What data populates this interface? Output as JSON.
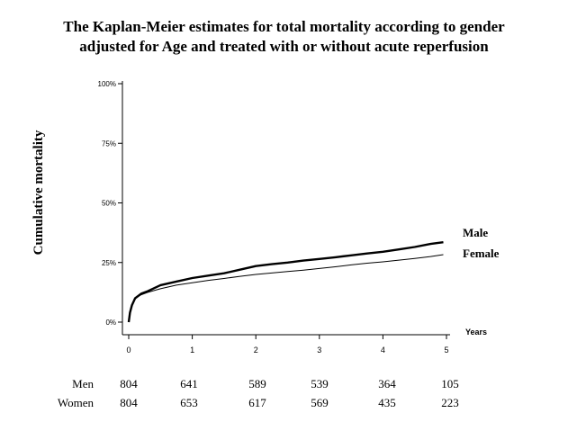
{
  "chart_data": {
    "type": "line",
    "title_line_1": "The Kaplan-Meier estimates for total mortality according to gender",
    "title_line_2": "adjusted for Age and  treated with or without acute reperfusion",
    "ylabel": "Cumulative  mortality",
    "xlabel": "Years",
    "xlim": [
      0,
      5
    ],
    "ylim": [
      0,
      100
    ],
    "x_ticks": [
      "0",
      "1",
      "2",
      "3",
      "4",
      "5"
    ],
    "y_ticks": [
      "0%",
      "25%",
      "50%",
      "75%",
      "100%"
    ],
    "grid": false,
    "series": [
      {
        "name": "Male",
        "color": "#000000",
        "line": "thick",
        "x": [
          0,
          0.02,
          0.05,
          0.1,
          0.2,
          0.3,
          0.5,
          0.75,
          1.0,
          1.25,
          1.5,
          1.75,
          2.0,
          2.25,
          2.5,
          2.75,
          3.0,
          3.25,
          3.5,
          3.75,
          4.0,
          4.25,
          4.5,
          4.75,
          4.95
        ],
        "y": [
          0,
          4,
          7,
          10,
          12,
          13,
          15.5,
          17,
          18.5,
          19.5,
          20.5,
          22,
          23.5,
          24.3,
          25,
          25.8,
          26.5,
          27.2,
          28,
          28.8,
          29.5,
          30.5,
          31.5,
          32.8,
          33.5
        ]
      },
      {
        "name": "Female",
        "color": "#000000",
        "line": "thin",
        "x": [
          0,
          0.02,
          0.05,
          0.1,
          0.2,
          0.3,
          0.5,
          0.75,
          1.0,
          1.25,
          1.5,
          1.75,
          2.0,
          2.25,
          2.5,
          2.75,
          3.0,
          3.25,
          3.5,
          3.75,
          4.0,
          4.25,
          4.5,
          4.75,
          4.95
        ],
        "y": [
          0,
          4,
          7,
          10,
          11.5,
          12.5,
          14,
          15.5,
          16.5,
          17.5,
          18.3,
          19.2,
          20,
          20.6,
          21.2,
          21.8,
          22.5,
          23.2,
          24,
          24.7,
          25.3,
          26,
          26.7,
          27.5,
          28.3
        ]
      }
    ],
    "number_at_risk": {
      "timepoints": [
        "0",
        "1",
        "2",
        "3",
        "4",
        "5"
      ],
      "rows": [
        {
          "label": "Men",
          "values": [
            "804",
            "641",
            "589",
            "539",
            "364",
            "105"
          ]
        },
        {
          "label": "Women",
          "values": [
            "804",
            "653",
            "617",
            "569",
            "435",
            "223"
          ]
        }
      ]
    }
  }
}
